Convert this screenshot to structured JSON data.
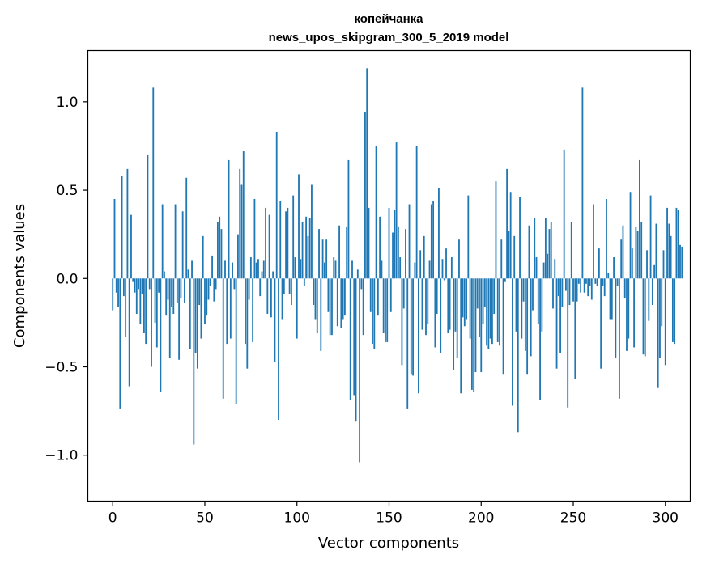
{
  "chart_data": {
    "type": "bar",
    "title": "копейчанка",
    "subtitle": "news_upos_skipgram_300_5_2019 model",
    "xlabel": "Vector components",
    "ylabel": "Components values",
    "xlim": [
      -13.5,
      313.5
    ],
    "ylim": [
      -1.26,
      1.29
    ],
    "xticks": [
      0,
      50,
      100,
      150,
      200,
      250,
      300
    ],
    "xtick_labels": [
      "0",
      "50",
      "100",
      "150",
      "200",
      "250",
      "300"
    ],
    "yticks": [
      -1.0,
      -0.5,
      0.0,
      0.5,
      1.0
    ],
    "ytick_labels": [
      "−1.0",
      "−0.5",
      "0.0",
      "0.5",
      "1.0"
    ],
    "color": "#1f77b4",
    "values": [
      -0.18,
      0.45,
      -0.08,
      -0.16,
      -0.74,
      0.58,
      -0.1,
      -0.33,
      0.62,
      -0.61,
      0.36,
      -0.02,
      -0.08,
      -0.2,
      -0.06,
      -0.26,
      -0.09,
      -0.31,
      -0.37,
      0.7,
      -0.06,
      -0.5,
      1.08,
      -0.25,
      -0.39,
      -0.08,
      -0.64,
      0.42,
      0.04,
      -0.21,
      -0.12,
      -0.45,
      -0.16,
      -0.2,
      0.42,
      -0.14,
      -0.46,
      -0.11,
      0.38,
      -0.14,
      0.57,
      0.05,
      -0.4,
      0.1,
      -0.94,
      -0.42,
      -0.51,
      -0.15,
      -0.34,
      0.24,
      -0.26,
      -0.21,
      -0.12,
      -0.04,
      0.13,
      -0.13,
      -0.06,
      0.32,
      0.35,
      0.28,
      -0.68,
      0.1,
      -0.37,
      0.67,
      -0.34,
      0.09,
      -0.06,
      -0.71,
      0.25,
      0.62,
      0.53,
      0.72,
      -0.37,
      -0.51,
      -0.12,
      0.12,
      -0.36,
      0.45,
      0.09,
      0.11,
      -0.1,
      0.04,
      0.1,
      0.4,
      -0.2,
      0.36,
      -0.22,
      0.04,
      -0.47,
      0.83,
      -0.8,
      0.44,
      -0.23,
      -0.09,
      0.38,
      0.4,
      -0.09,
      -0.15,
      0.47,
      0.12,
      -0.34,
      0.59,
      0.11,
      0.32,
      -0.04,
      0.35,
      0.24,
      0.34,
      0.53,
      -0.15,
      -0.23,
      -0.31,
      0.28,
      -0.41,
      0.22,
      0.09,
      0.22,
      -0.19,
      -0.32,
      -0.32,
      0.12,
      0.1,
      -0.27,
      0.3,
      -0.28,
      -0.23,
      -0.21,
      0.29,
      0.67,
      -0.69,
      0.1,
      -0.66,
      -0.81,
      0.05,
      -1.04,
      -0.06,
      -0.32,
      0.94,
      1.19,
      0.4,
      -0.19,
      -0.37,
      -0.4,
      0.75,
      -0.21,
      0.35,
      0.1,
      -0.31,
      -0.36,
      -0.36,
      0.4,
      -0.19,
      0.26,
      0.39,
      0.77,
      0.29,
      0.12,
      -0.49,
      -0.17,
      0.28,
      -0.74,
      0.42,
      -0.54,
      -0.55,
      0.09,
      0.75,
      -0.65,
      0.16,
      -0.29,
      0.24,
      -0.32,
      -0.26,
      0.1,
      0.42,
      0.44,
      -0.39,
      -0.2,
      0.51,
      -0.42,
      0.11,
      -0.01,
      0.17,
      -0.31,
      -0.29,
      0.12,
      -0.52,
      -0.3,
      -0.45,
      0.22,
      -0.65,
      -0.22,
      -0.27,
      -0.23,
      0.47,
      -0.34,
      -0.63,
      -0.64,
      -0.53,
      -0.17,
      -0.33,
      -0.53,
      -0.26,
      -0.16,
      -0.38,
      -0.4,
      -0.34,
      -0.37,
      -0.2,
      0.55,
      -0.36,
      -0.38,
      0.22,
      -0.54,
      -0.02,
      0.62,
      0.27,
      0.49,
      -0.72,
      0.24,
      -0.3,
      -0.87,
      0.46,
      -0.34,
      -0.13,
      -0.41,
      -0.54,
      0.3,
      -0.44,
      -0.18,
      0.34,
      0.12,
      -0.26,
      -0.69,
      -0.3,
      0.09,
      0.34,
      0.14,
      0.28,
      0.32,
      -0.17,
      0.11,
      -0.51,
      -0.1,
      -0.42,
      -0.16,
      0.73,
      -0.07,
      -0.73,
      -0.15,
      0.32,
      -0.13,
      -0.57,
      -0.13,
      -0.03,
      -0.08,
      1.08,
      -0.08,
      -0.03,
      -0.1,
      -0.04,
      -0.12,
      0.42,
      -0.03,
      -0.04,
      0.17,
      -0.51,
      -0.04,
      -0.1,
      0.45,
      0.03,
      -0.23,
      -0.23,
      0.12,
      -0.45,
      -0.04,
      -0.68,
      0.22,
      0.3,
      -0.11,
      -0.41,
      -0.34,
      0.49,
      0.17,
      -0.39,
      0.29,
      0.27,
      0.67,
      0.32,
      -0.43,
      -0.44,
      0.16,
      -0.24,
      0.47,
      -0.15,
      0.08,
      0.31,
      -0.62,
      -0.45,
      -0.27,
      0.16,
      -0.49,
      0.4,
      0.31,
      0.24,
      -0.36,
      -0.37,
      0.4,
      0.39,
      0.19,
      0.18
    ]
  }
}
